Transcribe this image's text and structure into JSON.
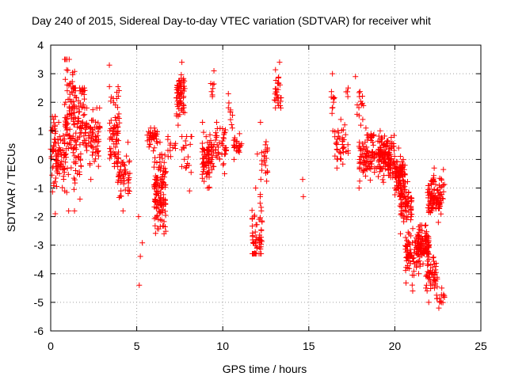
{
  "chart_data": {
    "type": "scatter",
    "title": "Day 240 of 2015, Sidereal Day-to-day VTEC variation (SDTVAR) for receiver whit",
    "xlabel": "GPS time / hours",
    "ylabel": "SDTVAR / TECUs",
    "xlim": [
      0,
      25
    ],
    "ylim": [
      -6,
      4
    ],
    "xticks": [
      0,
      5,
      10,
      15,
      20,
      25
    ],
    "yticks": [
      -6,
      -5,
      -4,
      -3,
      -2,
      -1,
      0,
      1,
      2,
      3,
      4
    ],
    "grid": true,
    "legend": "none",
    "marker": "+",
    "color": "#ff0000",
    "clusters": [
      {
        "x0": 0.0,
        "x1": 0.3,
        "ymin": -1.9,
        "ymax": 1.5,
        "center": 0.4,
        "n": 40
      },
      {
        "x0": 0.3,
        "x1": 0.9,
        "ymin": -1.1,
        "ymax": 1.3,
        "center": 0.0,
        "n": 55
      },
      {
        "x0": 0.8,
        "x1": 1.4,
        "ymin": -1.8,
        "ymax": 3.5,
        "center": 1.5,
        "n": 90
      },
      {
        "x0": 1.3,
        "x1": 2.0,
        "ymin": -1.8,
        "ymax": 2.5,
        "center": 1.5,
        "n": 95
      },
      {
        "x0": 2.0,
        "x1": 2.9,
        "ymin": -0.7,
        "ymax": 1.8,
        "center": 0.8,
        "n": 75
      },
      {
        "x0": 3.4,
        "x1": 4.0,
        "ymin": -0.8,
        "ymax": 3.3,
        "center": 1.0,
        "n": 75
      },
      {
        "x0": 3.9,
        "x1": 4.6,
        "ymin": -1.8,
        "ymax": 0.6,
        "center": -0.6,
        "n": 50
      },
      {
        "x0": 5.1,
        "x1": 5.35,
        "ymin": -4.4,
        "ymax": -2.0,
        "center": -3.0,
        "n": 4
      },
      {
        "x0": 5.6,
        "x1": 6.2,
        "ymin": 0.3,
        "ymax": 1.1,
        "center": 0.8,
        "n": 35
      },
      {
        "x0": 6.0,
        "x1": 6.7,
        "ymin": -2.6,
        "ymax": 0.6,
        "center": -1.2,
        "n": 130
      },
      {
        "x0": 6.8,
        "x1": 7.3,
        "ymin": 0.1,
        "ymax": 0.8,
        "center": 0.4,
        "n": 12
      },
      {
        "x0": 7.3,
        "x1": 7.8,
        "ymin": 1.2,
        "ymax": 3.4,
        "center": 2.2,
        "n": 70
      },
      {
        "x0": 7.6,
        "x1": 8.2,
        "ymin": -1.1,
        "ymax": 0.8,
        "center": 0.2,
        "n": 20
      },
      {
        "x0": 8.8,
        "x1": 9.5,
        "ymin": -1.0,
        "ymax": 1.3,
        "center": 0.0,
        "n": 80
      },
      {
        "x0": 9.3,
        "x1": 9.5,
        "ymin": 2.2,
        "ymax": 3.1,
        "center": 2.6,
        "n": 8
      },
      {
        "x0": 9.5,
        "x1": 10.2,
        "ymin": -0.5,
        "ymax": 1.3,
        "center": 0.5,
        "n": 40
      },
      {
        "x0": 10.3,
        "x1": 10.6,
        "ymin": 1.1,
        "ymax": 2.3,
        "center": 1.6,
        "n": 10
      },
      {
        "x0": 10.6,
        "x1": 11.1,
        "ymin": 0.0,
        "ymax": 0.9,
        "center": 0.5,
        "n": 25
      },
      {
        "x0": 11.7,
        "x1": 12.3,
        "ymin": -3.3,
        "ymax": -1.0,
        "center": -2.6,
        "n": 60
      },
      {
        "x0": 12.0,
        "x1": 12.6,
        "ymin": -1.3,
        "ymax": 1.3,
        "center": 0.0,
        "n": 25
      },
      {
        "x0": 13.0,
        "x1": 13.4,
        "ymin": 1.8,
        "ymax": 3.4,
        "center": 2.4,
        "n": 30
      },
      {
        "x0": 14.6,
        "x1": 14.9,
        "ymin": -1.3,
        "ymax": -0.7,
        "center": -1.0,
        "n": 2
      },
      {
        "x0": 16.3,
        "x1": 16.5,
        "ymin": 1.0,
        "ymax": 3.0,
        "center": 2.0,
        "n": 12
      },
      {
        "x0": 16.5,
        "x1": 17.3,
        "ymin": -0.3,
        "ymax": 1.4,
        "center": 0.6,
        "n": 40
      },
      {
        "x0": 17.0,
        "x1": 17.3,
        "ymin": 2.2,
        "ymax": 2.5,
        "center": 2.35,
        "n": 4
      },
      {
        "x0": 17.7,
        "x1": 18.2,
        "ymin": 1.2,
        "ymax": 2.9,
        "center": 2.0,
        "n": 15
      },
      {
        "x0": 17.9,
        "x1": 19.0,
        "ymin": -1.0,
        "ymax": 0.6,
        "center": 0.0,
        "n": 80
      },
      {
        "x0": 18.3,
        "x1": 18.8,
        "ymin": 0.5,
        "ymax": 1.1,
        "center": 0.8,
        "n": 15
      },
      {
        "x0": 19.0,
        "x1": 20.0,
        "ymin": -1.0,
        "ymax": 1.0,
        "center": 0.1,
        "n": 140
      },
      {
        "x0": 20.0,
        "x1": 20.6,
        "ymin": -1.3,
        "ymax": 0.4,
        "center": -0.6,
        "n": 90
      },
      {
        "x0": 20.3,
        "x1": 21.0,
        "ymin": -2.6,
        "ymax": -0.5,
        "center": -1.5,
        "n": 70
      },
      {
        "x0": 20.6,
        "x1": 21.3,
        "ymin": -4.6,
        "ymax": -2.0,
        "center": -3.3,
        "n": 70
      },
      {
        "x0": 21.3,
        "x1": 22.0,
        "ymin": -4.0,
        "ymax": -2.3,
        "center": -3.0,
        "n": 110
      },
      {
        "x0": 21.8,
        "x1": 22.5,
        "ymin": -5.0,
        "ymax": -3.3,
        "center": -4.1,
        "n": 50
      },
      {
        "x0": 21.9,
        "x1": 22.9,
        "ymin": -2.2,
        "ymax": -0.3,
        "center": -1.2,
        "n": 110
      },
      {
        "x0": 22.4,
        "x1": 22.9,
        "ymin": -5.2,
        "ymax": -4.5,
        "center": -4.9,
        "n": 15
      }
    ]
  }
}
